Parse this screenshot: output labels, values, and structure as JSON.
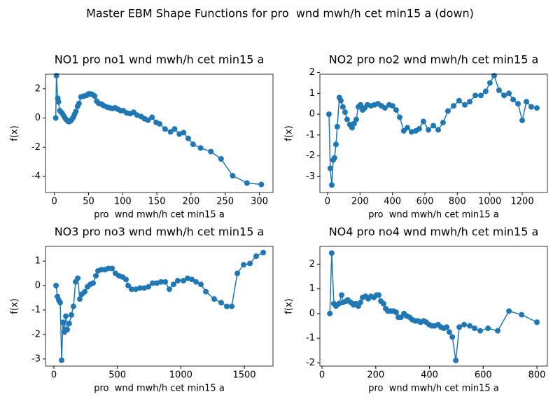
{
  "title": "Master EBM Shape Functions for pro  wnd mwh/h cet min15 a (down)",
  "chart_data": [
    {
      "type": "line",
      "title": "NO1 pro no1 wnd mwh/h cet min15 a",
      "xlabel": "pro  wnd mwh/h cet min15 a",
      "ylabel": "f(x)",
      "color": "#1f77b4",
      "xlim": [
        -13,
        320
      ],
      "xticks": [
        0,
        50,
        100,
        150,
        200,
        250,
        300
      ],
      "ylim": [
        -5.1,
        3.0
      ],
      "yticks": [
        -4,
        -2,
        0,
        2
      ],
      "x": [
        2,
        3,
        5,
        6,
        8,
        11,
        13,
        15,
        17,
        19.5,
        21,
        23.5,
        25.5,
        27.5,
        29.5,
        31.5,
        34,
        36,
        39,
        43,
        47,
        50,
        53,
        56,
        59,
        62,
        65,
        69,
        72,
        77,
        81,
        85,
        89,
        93,
        97,
        101,
        106,
        111,
        116,
        121,
        127,
        132,
        137,
        143,
        149,
        154,
        162,
        170,
        176,
        183,
        189,
        196,
        203,
        214,
        229,
        244,
        261,
        282,
        303
      ],
      "values": [
        0.0,
        2.9,
        1.35,
        1.1,
        0.5,
        0.35,
        0.2,
        0.05,
        -0.1,
        -0.2,
        -0.25,
        -0.2,
        -0.1,
        0.05,
        0.25,
        0.45,
        0.8,
        1.0,
        1.45,
        1.5,
        1.55,
        1.65,
        1.65,
        1.6,
        1.5,
        1.15,
        1.0,
        0.95,
        0.85,
        0.75,
        0.7,
        0.65,
        0.7,
        0.6,
        0.5,
        0.5,
        0.35,
        0.3,
        0.4,
        0.2,
        0.1,
        -0.05,
        -0.15,
        0.05,
        -0.3,
        -0.4,
        -0.75,
        -0.95,
        -0.75,
        -1.1,
        -1.0,
        -1.4,
        -1.8,
        -2.05,
        -2.3,
        -2.8,
        -3.95,
        -4.45,
        -4.55
      ]
    },
    {
      "type": "line",
      "title": "NO2 pro no2 wnd mwh/h cet min15 a",
      "xlabel": "pro  wnd mwh/h cet min15 a",
      "ylabel": "f(x)",
      "color": "#1f77b4",
      "xlim": [
        -47,
        1355
      ],
      "xticks": [
        0,
        200,
        400,
        600,
        800,
        1000,
        1200
      ],
      "ylim": [
        -3.76,
        1.92
      ],
      "yticks": [
        -3,
        -2,
        -1,
        0,
        1,
        2
      ],
      "x": [
        9,
        17,
        26,
        35,
        43,
        52,
        60,
        73,
        82,
        95,
        108,
        121,
        138,
        151,
        164,
        177,
        190,
        203,
        216,
        229,
        246,
        268,
        289,
        311,
        332,
        354,
        380,
        401,
        423,
        445,
        470,
        492,
        518,
        544,
        565,
        591,
        622,
        652,
        682,
        712,
        742,
        777,
        811,
        846,
        876,
        911,
        945,
        975,
        1001,
        1027,
        1057,
        1088,
        1118,
        1144,
        1174,
        1200,
        1226,
        1256,
        1290
      ],
      "values": [
        0.0,
        -2.6,
        -3.4,
        -2.2,
        -2.1,
        -1.45,
        -0.6,
        0.8,
        0.65,
        0.35,
        0.1,
        -0.25,
        -0.5,
        -0.65,
        -0.45,
        -0.25,
        0.35,
        0.45,
        0.2,
        0.3,
        0.45,
        0.4,
        0.45,
        0.5,
        0.4,
        0.3,
        0.45,
        0.4,
        0.2,
        -0.15,
        -0.8,
        -0.65,
        -0.85,
        -0.8,
        -0.7,
        -0.35,
        -0.75,
        -0.55,
        -0.75,
        -0.4,
        0.15,
        0.4,
        0.65,
        0.45,
        0.6,
        0.9,
        0.9,
        1.1,
        1.5,
        1.85,
        1.15,
        0.9,
        1.0,
        0.7,
        0.5,
        -0.3,
        0.6,
        0.35,
        0.3
      ]
    },
    {
      "type": "line",
      "title": "NO3 pro no3 wnd mwh/h cet min15 a",
      "xlabel": "pro  wnd mwh/h cet min15 a",
      "ylabel": "f(x)",
      "color": "#1f77b4",
      "xlim": [
        -66,
        1726
      ],
      "xticks": [
        0,
        500,
        1000,
        1500
      ],
      "ylim": [
        -3.29,
        1.6
      ],
      "yticks": [
        -3,
        -2,
        -1,
        0,
        1
      ],
      "x": [
        17,
        28,
        39,
        50,
        61,
        72,
        83,
        94,
        105,
        121,
        138,
        154,
        171,
        188,
        204,
        221,
        243,
        265,
        287,
        309,
        331,
        348,
        375,
        403,
        430,
        458,
        485,
        513,
        541,
        568,
        585,
        612,
        645,
        678,
        712,
        745,
        778,
        811,
        844,
        877,
        910,
        943,
        976,
        1020,
        1053,
        1087,
        1120,
        1158,
        1197,
        1263,
        1318,
        1362,
        1401,
        1445,
        1495,
        1544,
        1594,
        1649
      ],
      "values": [
        0.0,
        -0.45,
        -0.6,
        -0.7,
        -3.05,
        -1.5,
        -1.9,
        -1.25,
        -1.8,
        -1.55,
        -1.2,
        -0.85,
        0.15,
        0.3,
        -0.55,
        -0.35,
        -0.25,
        -0.05,
        0.05,
        0.1,
        0.4,
        0.6,
        0.65,
        0.65,
        0.7,
        0.7,
        0.5,
        0.4,
        0.35,
        0.25,
        0.0,
        -0.15,
        -0.15,
        -0.1,
        -0.1,
        -0.05,
        0.1,
        0.1,
        0.15,
        0.15,
        -0.15,
        0.05,
        0.2,
        0.2,
        0.3,
        0.25,
        0.15,
        0.05,
        -0.25,
        -0.55,
        -0.7,
        -0.85,
        -0.85,
        0.5,
        0.85,
        0.9,
        1.2,
        1.35
      ]
    },
    {
      "type": "line",
      "title": "NO4 pro no4 wnd mwh/h cet min15 a",
      "xlabel": "pro  wnd mwh/h cet min15 a",
      "ylabel": "f(x)",
      "color": "#1f77b4",
      "xlim": [
        -8,
        839
      ],
      "xticks": [
        0,
        200,
        400,
        600,
        800
      ],
      "ylim": [
        -2.13,
        2.72
      ],
      "yticks": [
        -2,
        -1,
        0,
        1,
        2
      ],
      "x": [
        29,
        36,
        44,
        52,
        63,
        73,
        78,
        89,
        96,
        107,
        117,
        125,
        135,
        143,
        151,
        162,
        172,
        182,
        193,
        203,
        211,
        219,
        229,
        237,
        245,
        255,
        266,
        276,
        284,
        294,
        305,
        315,
        326,
        336,
        347,
        357,
        367,
        378,
        388,
        399,
        409,
        419,
        432,
        443,
        453,
        464,
        474,
        485,
        498,
        511,
        529,
        550,
        568,
        589,
        618,
        654,
        696,
        743,
        800
      ],
      "values": [
        0.0,
        2.45,
        0.4,
        0.3,
        0.4,
        0.75,
        0.45,
        0.5,
        0.55,
        0.45,
        0.35,
        0.4,
        0.3,
        0.45,
        0.65,
        0.7,
        0.6,
        0.7,
        0.65,
        0.75,
        0.75,
        0.5,
        0.4,
        0.2,
        0.1,
        0.1,
        0.1,
        0.05,
        -0.15,
        -0.15,
        0.0,
        -0.1,
        -0.15,
        -0.25,
        -0.3,
        -0.3,
        -0.35,
        -0.3,
        -0.35,
        -0.45,
        -0.5,
        -0.5,
        -0.45,
        -0.55,
        -0.6,
        -0.55,
        -0.75,
        -0.95,
        -1.9,
        -0.55,
        -0.45,
        -0.5,
        -0.6,
        -0.7,
        -0.6,
        -0.7,
        0.1,
        -0.05,
        -0.35
      ]
    }
  ]
}
